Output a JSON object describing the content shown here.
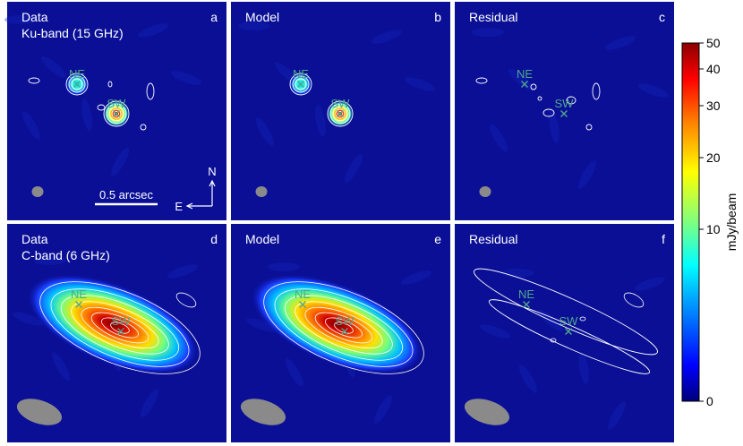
{
  "chart_data": {
    "type": "heatmap",
    "panels": [
      {
        "letter": "a",
        "title_line1": "Data",
        "title_line2": "Ku-band (15 GHz)",
        "band": "Ku-band (15 GHz)",
        "kind": "data"
      },
      {
        "letter": "b",
        "title_line1": "Model",
        "title_line2": "",
        "band": "Ku-band (15 GHz)",
        "kind": "model"
      },
      {
        "letter": "c",
        "title_line1": "Residual",
        "title_line2": "",
        "band": "Ku-band (15 GHz)",
        "kind": "residual"
      },
      {
        "letter": "d",
        "title_line1": "Data",
        "title_line2": "C-band (6 GHz)",
        "band": "C-band (6 GHz)",
        "kind": "data"
      },
      {
        "letter": "e",
        "title_line1": "Model",
        "title_line2": "",
        "band": "C-band (6 GHz)",
        "kind": "model"
      },
      {
        "letter": "f",
        "title_line1": "Residual",
        "title_line2": "",
        "band": "C-band (6 GHz)",
        "kind": "residual"
      }
    ],
    "sources": [
      {
        "name": "NE"
      },
      {
        "name": "SW"
      }
    ],
    "scale_bar_label": "0.5 arcsec",
    "compass": {
      "north": "N",
      "east": "E"
    },
    "colorbar": {
      "label": "mJy/beam",
      "ticks": [
        50,
        40,
        30,
        20,
        10,
        0
      ],
      "range": [
        0,
        50
      ],
      "colors": [
        "#00007a",
        "#0000ff",
        "#00a0ff",
        "#00ffff",
        "#7fff7f",
        "#ffff00",
        "#ff8000",
        "#ff0000",
        "#8b0000"
      ]
    },
    "background_color": "#0a0f96",
    "marker_color": "#4fa88a"
  }
}
